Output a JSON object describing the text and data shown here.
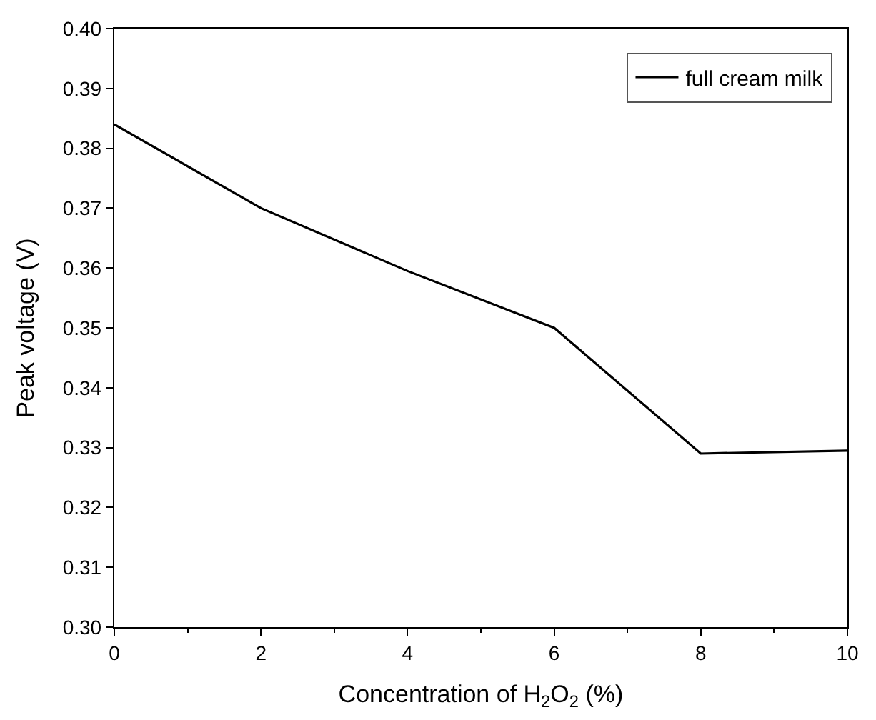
{
  "chart_data": {
    "type": "line",
    "xlabel": "Concentration of H$_{2}$O$_{2}$ (%)",
    "ylabel": "Peak voltage (V)",
    "x": [
      0,
      2,
      4,
      6,
      8,
      10
    ],
    "series": [
      {
        "name": "full cream milk",
        "color": "#000000",
        "values": [
          0.384,
          0.37,
          0.3595,
          0.35,
          0.329,
          0.3295
        ]
      }
    ],
    "xlim": [
      0,
      10
    ],
    "xticks": [
      0,
      2,
      4,
      6,
      8,
      10
    ],
    "ylim": [
      0.3,
      0.4
    ],
    "yticks": [
      {
        "value": 0.3,
        "label": "0.30"
      },
      0.31,
      0.32,
      0.33,
      0.34,
      0.35,
      0.36,
      0.37,
      0.38,
      0.39,
      {
        "value": 0.4,
        "label": "0.40"
      }
    ],
    "legend": "top right",
    "marker": "none",
    "line_style": "solid"
  }
}
